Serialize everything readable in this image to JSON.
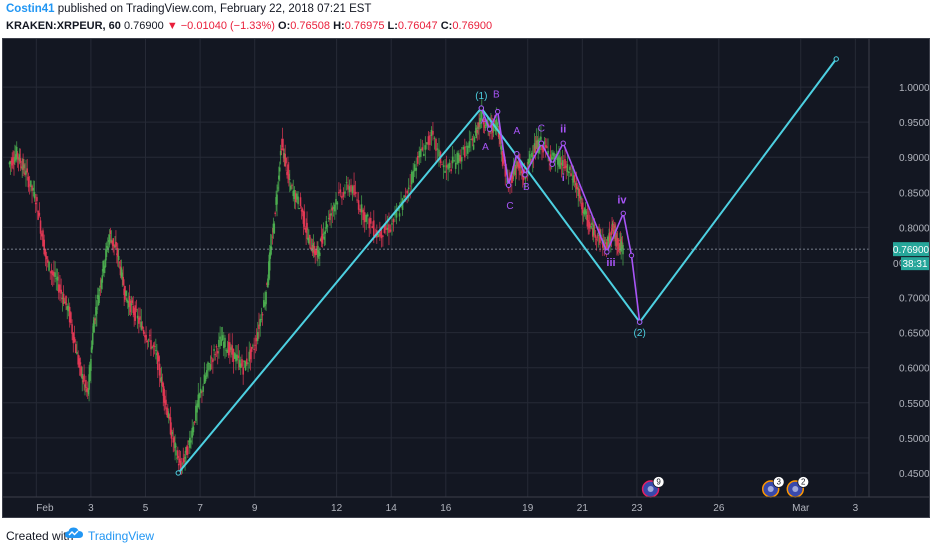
{
  "header": {
    "author": "Costin41",
    "published_text": "published on TradingView.com, February 22, 2018 07:21 EST",
    "symbol": "KRAKEN:XRPEUR, 60",
    "last": "0.76900",
    "change": "▼ −0.01040 (−1.33%)",
    "o_label": "O:",
    "o_val": "0.76508",
    "h_label": "H:",
    "h_val": "0.76975",
    "l_label": "L:",
    "l_val": "0.76047",
    "c_label": "C:",
    "c_val": "0.76900"
  },
  "footer": {
    "created_with": "Created with",
    "brand": "TradingView"
  },
  "chart_data": {
    "type": "line",
    "symbol": "KRAKEN:XRPEUR",
    "interval": "60",
    "ylim": [
      0.43,
      1.04
    ],
    "y_ticks": [
      "1.00000",
      "0.95000",
      "0.90000",
      "0.85000",
      "0.80000",
      "0.75000",
      "0.70000",
      "0.65000",
      "0.60000",
      "0.55000",
      "0.50000",
      "0.45000"
    ],
    "x_ticks": [
      {
        "label": "Feb",
        "day": 1
      },
      {
        "label": "3",
        "day": 3
      },
      {
        "label": "5",
        "day": 5
      },
      {
        "label": "7",
        "day": 7
      },
      {
        "label": "9",
        "day": 9
      },
      {
        "label": "12",
        "day": 12
      },
      {
        "label": "14",
        "day": 14
      },
      {
        "label": "16",
        "day": 16
      },
      {
        "label": "19",
        "day": 19
      },
      {
        "label": "21",
        "day": 21
      },
      {
        "label": "23",
        "day": 23
      },
      {
        "label": "26",
        "day": 26
      },
      {
        "label": "Mar",
        "day": 29
      },
      {
        "label": "3",
        "day": 31
      }
    ],
    "current_price_label": "0.76900",
    "countdown_label": "38:31",
    "hidden_tick_label": "0",
    "current_price": 0.769,
    "price_path": [
      [
        0.0,
        0.89
      ],
      [
        0.3,
        0.905
      ],
      [
        0.6,
        0.88
      ],
      [
        1.0,
        0.84
      ],
      [
        1.4,
        0.75
      ],
      [
        1.8,
        0.72
      ],
      [
        2.2,
        0.68
      ],
      [
        2.6,
        0.6
      ],
      [
        2.9,
        0.56
      ],
      [
        3.1,
        0.66
      ],
      [
        3.4,
        0.73
      ],
      [
        3.7,
        0.79
      ],
      [
        4.0,
        0.76
      ],
      [
        4.3,
        0.7
      ],
      [
        4.6,
        0.68
      ],
      [
        5.0,
        0.65
      ],
      [
        5.4,
        0.62
      ],
      [
        5.7,
        0.56
      ],
      [
        6.0,
        0.5
      ],
      [
        6.3,
        0.455
      ],
      [
        6.6,
        0.49
      ],
      [
        7.0,
        0.56
      ],
      [
        7.4,
        0.61
      ],
      [
        7.8,
        0.64
      ],
      [
        8.2,
        0.62
      ],
      [
        8.6,
        0.6
      ],
      [
        9.0,
        0.63
      ],
      [
        9.4,
        0.7
      ],
      [
        9.7,
        0.8
      ],
      [
        10.0,
        0.92
      ],
      [
        10.3,
        0.86
      ],
      [
        10.7,
        0.83
      ],
      [
        11.0,
        0.78
      ],
      [
        11.3,
        0.76
      ],
      [
        11.6,
        0.8
      ],
      [
        12.0,
        0.84
      ],
      [
        12.5,
        0.86
      ],
      [
        13.0,
        0.82
      ],
      [
        13.5,
        0.79
      ],
      [
        14.0,
        0.8
      ],
      [
        14.5,
        0.84
      ],
      [
        15.0,
        0.9
      ],
      [
        15.5,
        0.93
      ],
      [
        16.0,
        0.88
      ],
      [
        16.5,
        0.9
      ],
      [
        17.0,
        0.92
      ],
      [
        17.3,
        0.96
      ],
      [
        17.6,
        0.94
      ],
      [
        17.9,
        0.95
      ],
      [
        18.1,
        0.9
      ],
      [
        18.3,
        0.86
      ],
      [
        18.6,
        0.89
      ],
      [
        18.9,
        0.87
      ],
      [
        19.2,
        0.91
      ],
      [
        19.5,
        0.92
      ],
      [
        19.9,
        0.9
      ],
      [
        20.3,
        0.89
      ],
      [
        20.7,
        0.87
      ],
      [
        21.0,
        0.83
      ],
      [
        21.3,
        0.8
      ],
      [
        21.6,
        0.79
      ],
      [
        21.9,
        0.77
      ],
      [
        22.1,
        0.8
      ],
      [
        22.3,
        0.78
      ],
      [
        22.5,
        0.769
      ]
    ],
    "wave_primary": {
      "color": "#4dd0e1",
      "points": [
        [
          6.2,
          0.45
        ],
        [
          17.3,
          0.97
        ],
        [
          23.1,
          0.665
        ],
        [
          30.3,
          1.04
        ]
      ],
      "labels": [
        {
          "text": "(1)",
          "x": 17.3,
          "y": 0.983
        },
        {
          "text": "(2)",
          "x": 23.1,
          "y": 0.645
        }
      ]
    },
    "wave_secondary": {
      "color": "#a855f7",
      "points": [
        [
          17.3,
          0.97
        ],
        [
          17.6,
          0.94
        ],
        [
          17.9,
          0.965
        ],
        [
          18.3,
          0.86
        ],
        [
          18.6,
          0.905
        ],
        [
          18.9,
          0.875
        ],
        [
          19.5,
          0.92
        ],
        [
          19.9,
          0.89
        ],
        [
          20.3,
          0.92
        ],
        [
          21.9,
          0.765
        ],
        [
          22.5,
          0.82
        ],
        [
          22.8,
          0.76
        ],
        [
          23.1,
          0.665
        ]
      ],
      "labels": [
        {
          "text": "A",
          "x": 17.45,
          "y": 0.91
        },
        {
          "text": "A",
          "x": 17.4,
          "y": 0.948
        },
        {
          "text": "B",
          "x": 17.85,
          "y": 0.985
        },
        {
          "text": "C",
          "x": 18.35,
          "y": 0.826
        },
        {
          "text": "A",
          "x": 18.6,
          "y": 0.933
        },
        {
          "text": "B",
          "x": 18.95,
          "y": 0.853
        },
        {
          "text": "C",
          "x": 19.5,
          "y": 0.937
        },
        {
          "text": "ii",
          "x": 20.3,
          "y": 0.935
        },
        {
          "text": "i",
          "x": 20.3,
          "y": 0.866
        },
        {
          "text": "iv",
          "x": 22.45,
          "y": 0.834
        },
        {
          "text": "iii",
          "x": 22.05,
          "y": 0.745
        }
      ]
    },
    "event_badges": [
      {
        "label": "9",
        "x": 23.5
      },
      {
        "label": "3",
        "x": 27.9
      },
      {
        "label": "2",
        "x": 28.8
      }
    ]
  }
}
